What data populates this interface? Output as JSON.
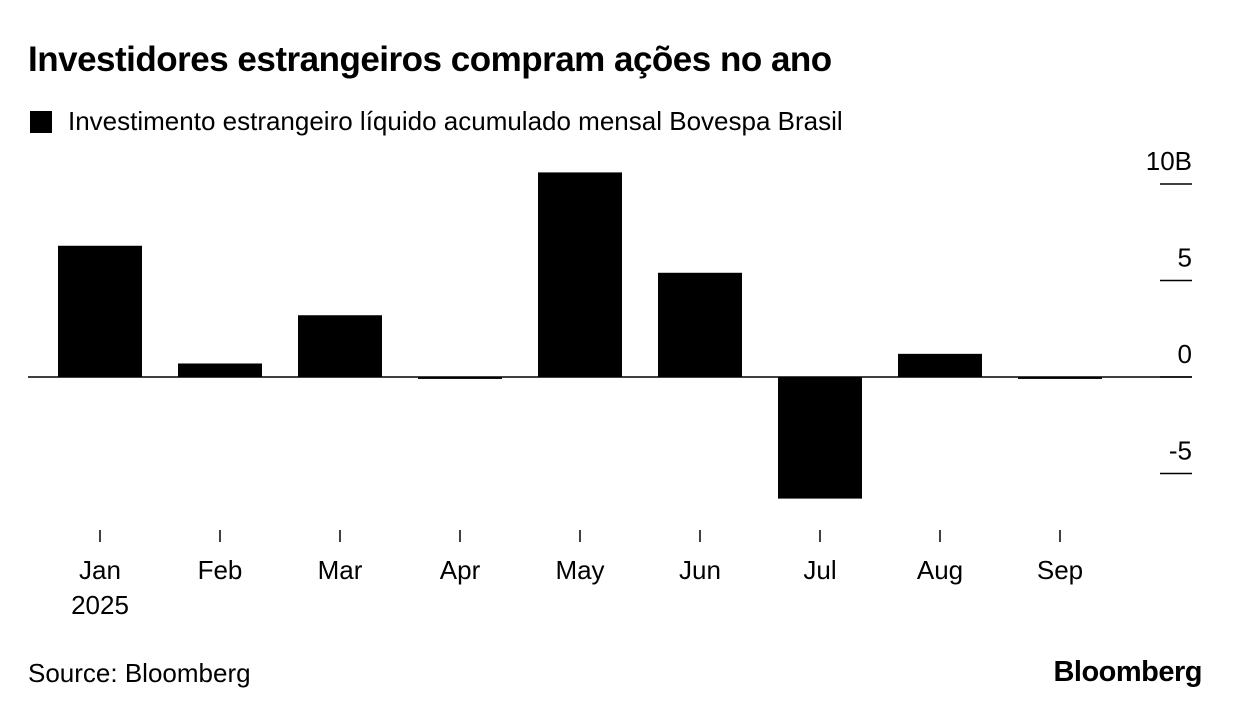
{
  "header": {
    "title": "Investidores estrangeiros compram ações no ano"
  },
  "legend": {
    "label": "Investimento estrangeiro líquido acumulado mensal Bovespa Brasil",
    "color": "#000000"
  },
  "footer": {
    "source": "Source: Bloomberg",
    "brand": "Bloomberg"
  },
  "chart_data": {
    "type": "bar",
    "title": "Investidores estrangeiros compram ações no ano",
    "categories": [
      "Jan",
      "Feb",
      "Mar",
      "Apr",
      "May",
      "Jun",
      "Jul",
      "Aug",
      "Sep"
    ],
    "year_label": "2025",
    "series": [
      {
        "name": "Investimento estrangeiro líquido acumulado mensal Bovespa Brasil",
        "color": "#000000",
        "values": [
          6.8,
          0.7,
          3.2,
          -0.1,
          10.6,
          5.4,
          -6.3,
          1.2,
          -0.1
        ]
      }
    ],
    "ylim": [
      -8,
      11
    ],
    "yticks": [
      {
        "value": 10,
        "label": "10B"
      },
      {
        "value": 5,
        "label": "5"
      },
      {
        "value": 0,
        "label": "0"
      },
      {
        "value": -5,
        "label": "-5"
      }
    ],
    "y_axis_side": "right",
    "grid": false,
    "legend_position": "top-left"
  }
}
